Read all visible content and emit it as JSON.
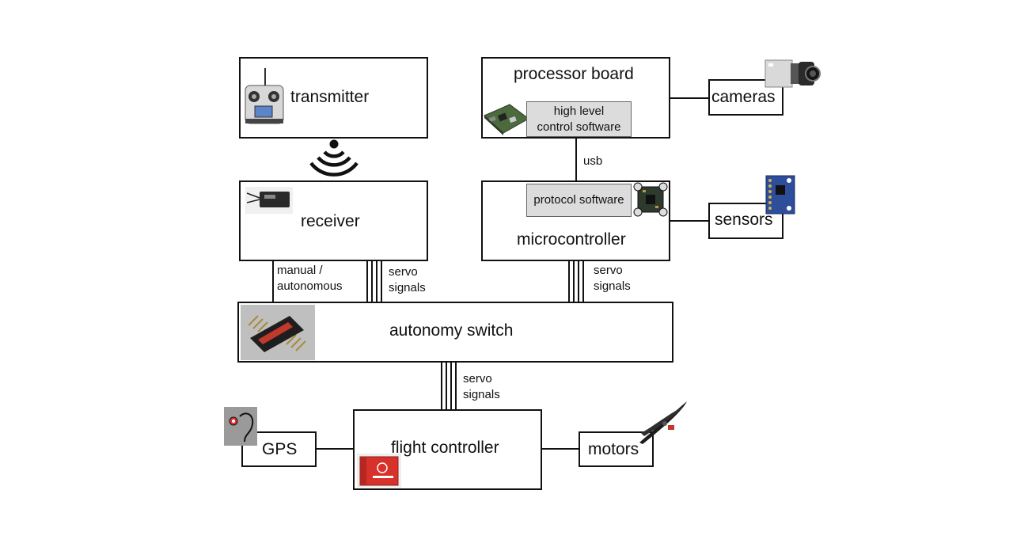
{
  "blocks": {
    "transmitter": "transmitter",
    "processor_board": "processor board",
    "high_level_software_line1": "high level",
    "high_level_software_line2": "control software",
    "cameras": "cameras",
    "receiver": "receiver",
    "protocol_software": "protocol software",
    "microcontroller": "microcontroller",
    "sensors": "sensors",
    "autonomy_switch": "autonomy switch",
    "flight_controller": "flight controller",
    "gps": "GPS",
    "motors": "motors"
  },
  "connections": {
    "usb": "usb",
    "manual_line1": "manual /",
    "manual_line2": "autonomous",
    "servo_left_line1": "servo",
    "servo_left_line2": "signals",
    "servo_right_line1": "servo",
    "servo_right_line2": "signals",
    "servo_bottom_line1": "servo",
    "servo_bottom_line2": "signals"
  },
  "icons": {
    "transmitter": "rc-transmitter-icon",
    "wireless": "wireless-signal-icon",
    "processor": "processor-board-icon",
    "camera": "camera-icon",
    "receiver": "rc-receiver-icon",
    "microcontroller": "microcontroller-board-icon",
    "sensor": "sensor-board-icon",
    "switch": "autonomy-switch-icon",
    "gps": "gps-antenna-icon",
    "flight_controller": "flight-controller-icon",
    "motor": "propeller-icon"
  },
  "colors": {
    "line": "#111111",
    "software_box": "#dcdcdc",
    "flight_controller_red": "#d8312b",
    "sensor_blue": "#2e4d9a"
  }
}
